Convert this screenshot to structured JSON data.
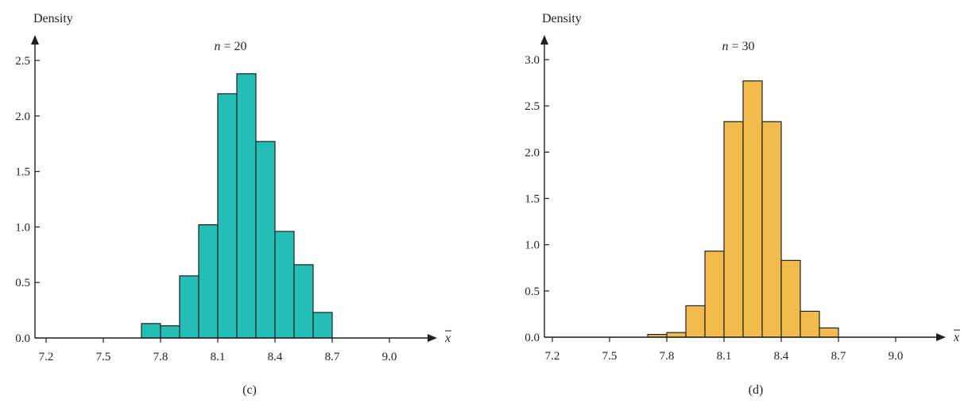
{
  "chart_data": [
    {
      "type": "bar",
      "title_var": "n",
      "title_eq": " = ",
      "title_value": "20",
      "ylabel": "Density",
      "xlabel": "x",
      "caption": "(c)",
      "color": "#23beb5",
      "ylim": [
        0,
        2.5
      ],
      "yticks": [
        "0.0",
        "0.5",
        "1.0",
        "1.5",
        "2.0",
        "2.5"
      ],
      "xticks": [
        "7.2",
        "7.5",
        "7.8",
        "8.1",
        "8.4",
        "8.7",
        "9.0"
      ],
      "bin_width": 0.1,
      "bins": [
        {
          "start": 7.7,
          "value": 0.13
        },
        {
          "start": 7.8,
          "value": 0.11
        },
        {
          "start": 7.9,
          "value": 0.56
        },
        {
          "start": 8.0,
          "value": 1.02
        },
        {
          "start": 8.1,
          "value": 2.2
        },
        {
          "start": 8.2,
          "value": 2.38
        },
        {
          "start": 8.3,
          "value": 1.77
        },
        {
          "start": 8.4,
          "value": 0.96
        },
        {
          "start": 8.5,
          "value": 0.66
        },
        {
          "start": 8.6,
          "value": 0.23
        }
      ]
    },
    {
      "type": "bar",
      "title_var": "n",
      "title_eq": " = ",
      "title_value": "30",
      "ylabel": "Density",
      "xlabel": "x",
      "caption": "(d)",
      "color": "#f2bc4c",
      "ylim": [
        0,
        3.0
      ],
      "yticks": [
        "0.0",
        "0.5",
        "1.0",
        "1.5",
        "2.0",
        "2.5",
        "3.0"
      ],
      "xticks": [
        "7.2",
        "7.5",
        "7.8",
        "8.1",
        "8.4",
        "8.7",
        "9.0"
      ],
      "bin_width": 0.1,
      "bins": [
        {
          "start": 7.7,
          "value": 0.03
        },
        {
          "start": 7.8,
          "value": 0.05
        },
        {
          "start": 7.9,
          "value": 0.34
        },
        {
          "start": 8.0,
          "value": 0.93
        },
        {
          "start": 8.1,
          "value": 2.33
        },
        {
          "start": 8.2,
          "value": 2.77
        },
        {
          "start": 8.3,
          "value": 2.33
        },
        {
          "start": 8.4,
          "value": 0.83
        },
        {
          "start": 8.5,
          "value": 0.28
        },
        {
          "start": 8.6,
          "value": 0.1
        }
      ]
    }
  ]
}
